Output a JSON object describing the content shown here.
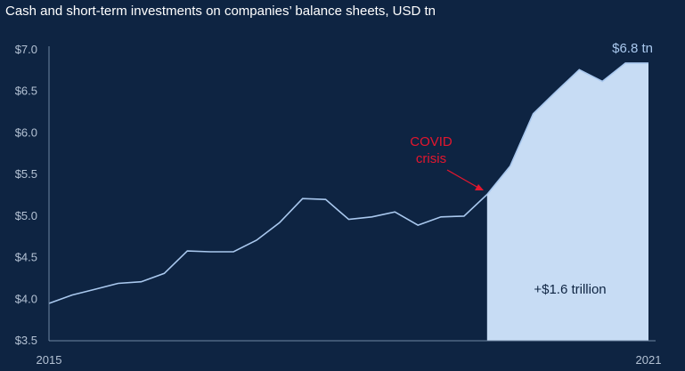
{
  "chart_data": {
    "type": "area",
    "title": "Cash and short-term investments on companies’ balance sheets, USD tn",
    "ylim": [
      3.5,
      7.0
    ],
    "yticks": [
      {
        "value": 7.0,
        "label": "$7.0"
      },
      {
        "value": 6.5,
        "label": "$6.5"
      },
      {
        "value": 6.0,
        "label": "$6.0"
      },
      {
        "value": 5.5,
        "label": "$5.5"
      },
      {
        "value": 5.0,
        "label": "$5.0"
      },
      {
        "value": 4.5,
        "label": "$4.5"
      },
      {
        "value": 4.0,
        "label": "$4.0"
      },
      {
        "value": 3.5,
        "label": "$3.5"
      }
    ],
    "xlim": [
      0,
      26
    ],
    "xlabels": [
      {
        "x": 0,
        "label": "2015"
      },
      {
        "x": 26,
        "label": "2021"
      }
    ],
    "grid": false,
    "series": [
      {
        "x": [
          0,
          1,
          2,
          3,
          4,
          5,
          6,
          7,
          8,
          9,
          10,
          11,
          12,
          13,
          14,
          15,
          16,
          17,
          18,
          19,
          20,
          21,
          22,
          23,
          24,
          25,
          26
        ],
        "values": [
          3.95,
          4.05,
          4.12,
          4.19,
          4.21,
          4.31,
          4.58,
          4.57,
          4.57,
          4.71,
          4.92,
          5.21,
          5.2,
          4.96,
          4.99,
          5.05,
          4.89,
          4.99,
          5.0,
          5.26,
          5.6,
          6.23,
          6.5,
          6.76,
          6.62,
          6.84,
          6.84
        ]
      }
    ],
    "highlight_from_x": 19,
    "colors": {
      "background": "#0e2442",
      "line": "#a9c8ee",
      "fill": "#c7dcf4",
      "axis": "#6f86a3",
      "annotation": "#e4162e",
      "area_text": "#0e2442"
    },
    "annotations": {
      "end_value": "$6.8 tn",
      "covid_line1": "COVID",
      "covid_line2": "crisis",
      "increase": "+$1.6 trillion"
    }
  }
}
